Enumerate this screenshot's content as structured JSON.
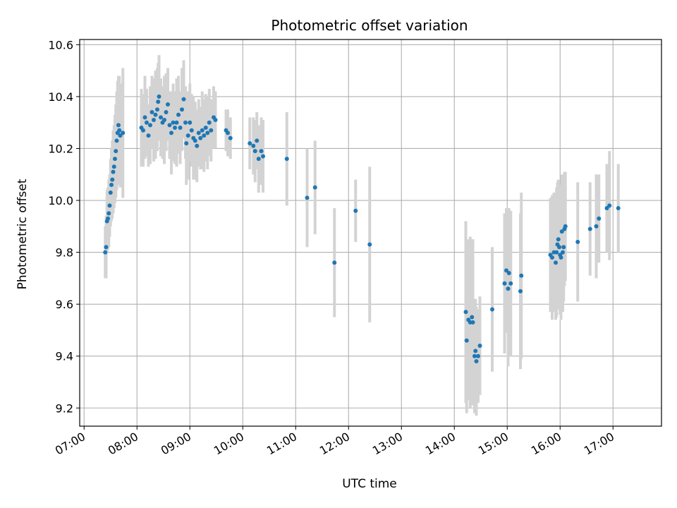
{
  "chart_data": {
    "type": "scatter",
    "title": "Photometric offset variation",
    "xlabel": "UTC time",
    "ylabel": "Photometric offset",
    "x_unit": "hours UTC",
    "xlim": [
      "06:55",
      "17:55"
    ],
    "ylim": [
      9.13,
      10.62
    ],
    "x_ticks": [
      "07:00",
      "08:00",
      "09:00",
      "10:00",
      "11:00",
      "12:00",
      "13:00",
      "14:00",
      "15:00",
      "16:00",
      "17:00"
    ],
    "y_ticks": [
      "9.2",
      "9.4",
      "9.6",
      "9.8",
      "10.0",
      "10.2",
      "10.4",
      "10.6"
    ],
    "grid": true,
    "colors": {
      "points": "#1f77b4",
      "errorbars": "#d3d3d3",
      "grid": "#b0b0b0"
    },
    "series": [
      {
        "points": [
          {
            "t": "07:24",
            "y": 9.8,
            "e": 0.1
          },
          {
            "t": "07:25",
            "y": 9.82,
            "e": 0.12
          },
          {
            "t": "07:26",
            "y": 9.92,
            "e": 0.12
          },
          {
            "t": "07:27",
            "y": 9.93,
            "e": 0.12
          },
          {
            "t": "07:28",
            "y": 9.95,
            "e": 0.13
          },
          {
            "t": "07:29",
            "y": 9.98,
            "e": 0.12
          },
          {
            "t": "07:30",
            "y": 10.03,
            "e": 0.13
          },
          {
            "t": "07:31",
            "y": 10.06,
            "e": 0.14
          },
          {
            "t": "07:32",
            "y": 10.08,
            "e": 0.15
          },
          {
            "t": "07:33",
            "y": 10.11,
            "e": 0.16
          },
          {
            "t": "07:34",
            "y": 10.13,
            "e": 0.16
          },
          {
            "t": "07:35",
            "y": 10.16,
            "e": 0.17
          },
          {
            "t": "07:36",
            "y": 10.19,
            "e": 0.18
          },
          {
            "t": "07:37",
            "y": 10.23,
            "e": 0.19
          },
          {
            "t": "07:38",
            "y": 10.26,
            "e": 0.2
          },
          {
            "t": "07:39",
            "y": 10.29,
            "e": 0.19
          },
          {
            "t": "07:40",
            "y": 10.27,
            "e": 0.21
          },
          {
            "t": "07:41",
            "y": 10.25,
            "e": 0.2
          },
          {
            "t": "07:44",
            "y": 10.26,
            "e": 0.25
          },
          {
            "t": "08:05",
            "y": 10.28,
            "e": 0.15
          },
          {
            "t": "08:07",
            "y": 10.27,
            "e": 0.14
          },
          {
            "t": "08:09",
            "y": 10.32,
            "e": 0.16
          },
          {
            "t": "08:11",
            "y": 10.3,
            "e": 0.13
          },
          {
            "t": "08:13",
            "y": 10.25,
            "e": 0.12
          },
          {
            "t": "08:15",
            "y": 10.29,
            "e": 0.15
          },
          {
            "t": "08:17",
            "y": 10.34,
            "e": 0.14
          },
          {
            "t": "08:19",
            "y": 10.31,
            "e": 0.16
          },
          {
            "t": "08:21",
            "y": 10.33,
            "e": 0.17
          },
          {
            "t": "08:23",
            "y": 10.35,
            "e": 0.16
          },
          {
            "t": "08:24",
            "y": 10.38,
            "e": 0.15
          },
          {
            "t": "08:25",
            "y": 10.4,
            "e": 0.16
          },
          {
            "t": "08:27",
            "y": 10.32,
            "e": 0.15
          },
          {
            "t": "08:29",
            "y": 10.3,
            "e": 0.14
          },
          {
            "t": "08:31",
            "y": 10.31,
            "e": 0.17
          },
          {
            "t": "08:33",
            "y": 10.34,
            "e": 0.15
          },
          {
            "t": "08:35",
            "y": 10.37,
            "e": 0.14
          },
          {
            "t": "08:37",
            "y": 10.29,
            "e": 0.13
          },
          {
            "t": "08:39",
            "y": 10.26,
            "e": 0.16
          },
          {
            "t": "08:41",
            "y": 10.3,
            "e": 0.15
          },
          {
            "t": "08:43",
            "y": 10.28,
            "e": 0.14
          },
          {
            "t": "08:45",
            "y": 10.3,
            "e": 0.17
          },
          {
            "t": "08:47",
            "y": 10.33,
            "e": 0.15
          },
          {
            "t": "08:49",
            "y": 10.28,
            "e": 0.14
          },
          {
            "t": "08:51",
            "y": 10.35,
            "e": 0.16
          },
          {
            "t": "08:53",
            "y": 10.39,
            "e": 0.15
          },
          {
            "t": "08:55",
            "y": 10.3,
            "e": 0.14
          },
          {
            "t": "08:56",
            "y": 10.22,
            "e": 0.16
          },
          {
            "t": "08:58",
            "y": 10.25,
            "e": 0.17
          },
          {
            "t": "09:00",
            "y": 10.3,
            "e": 0.15
          },
          {
            "t": "09:02",
            "y": 10.27,
            "e": 0.14
          },
          {
            "t": "09:04",
            "y": 10.24,
            "e": 0.16
          },
          {
            "t": "09:06",
            "y": 10.23,
            "e": 0.15
          },
          {
            "t": "09:08",
            "y": 10.21,
            "e": 0.14
          },
          {
            "t": "09:10",
            "y": 10.26,
            "e": 0.13
          },
          {
            "t": "09:12",
            "y": 10.24,
            "e": 0.12
          },
          {
            "t": "09:14",
            "y": 10.27,
            "e": 0.15
          },
          {
            "t": "09:16",
            "y": 10.25,
            "e": 0.14
          },
          {
            "t": "09:18",
            "y": 10.28,
            "e": 0.13
          },
          {
            "t": "09:20",
            "y": 10.26,
            "e": 0.14
          },
          {
            "t": "09:22",
            "y": 10.3,
            "e": 0.13
          },
          {
            "t": "09:24",
            "y": 10.27,
            "e": 0.12
          },
          {
            "t": "09:27",
            "y": 10.32,
            "e": 0.12
          },
          {
            "t": "09:29",
            "y": 10.31,
            "e": 0.11
          },
          {
            "t": "09:41",
            "y": 10.27,
            "e": 0.08
          },
          {
            "t": "09:43",
            "y": 10.26,
            "e": 0.09
          },
          {
            "t": "09:46",
            "y": 10.24,
            "e": 0.08
          },
          {
            "t": "10:08",
            "y": 10.22,
            "e": 0.1
          },
          {
            "t": "10:12",
            "y": 10.21,
            "e": 0.11
          },
          {
            "t": "10:14",
            "y": 10.19,
            "e": 0.12
          },
          {
            "t": "10:16",
            "y": 10.23,
            "e": 0.11
          },
          {
            "t": "10:18",
            "y": 10.16,
            "e": 0.13
          },
          {
            "t": "10:21",
            "y": 10.19,
            "e": 0.13
          },
          {
            "t": "10:23",
            "y": 10.17,
            "e": 0.14
          },
          {
            "t": "10:50",
            "y": 10.16,
            "e": 0.18
          },
          {
            "t": "11:13",
            "y": 10.01,
            "e": 0.19
          },
          {
            "t": "11:22",
            "y": 10.05,
            "e": 0.18
          },
          {
            "t": "11:44",
            "y": 9.76,
            "e": 0.21
          },
          {
            "t": "12:08",
            "y": 9.96,
            "e": 0.12
          },
          {
            "t": "12:24",
            "y": 9.83,
            "e": 0.3
          },
          {
            "t": "14:13",
            "y": 9.57,
            "e": 0.35
          },
          {
            "t": "14:14",
            "y": 9.46,
            "e": 0.28
          },
          {
            "t": "14:16",
            "y": 9.54,
            "e": 0.31
          },
          {
            "t": "14:18",
            "y": 9.53,
            "e": 0.33
          },
          {
            "t": "14:20",
            "y": 9.55,
            "e": 0.3
          },
          {
            "t": "14:21",
            "y": 9.53,
            "e": 0.32
          },
          {
            "t": "14:23",
            "y": 9.4,
            "e": 0.22
          },
          {
            "t": "14:24",
            "y": 9.42,
            "e": 0.2
          },
          {
            "t": "14:25",
            "y": 9.38,
            "e": 0.21
          },
          {
            "t": "14:27",
            "y": 9.4,
            "e": 0.18
          },
          {
            "t": "14:29",
            "y": 9.44,
            "e": 0.19
          },
          {
            "t": "14:43",
            "y": 9.58,
            "e": 0.24
          },
          {
            "t": "14:57",
            "y": 9.68,
            "e": 0.27
          },
          {
            "t": "14:59",
            "y": 9.73,
            "e": 0.24
          },
          {
            "t": "15:01",
            "y": 9.66,
            "e": 0.3
          },
          {
            "t": "15:02",
            "y": 9.72,
            "e": 0.25
          },
          {
            "t": "15:04",
            "y": 9.68,
            "e": 0.28
          },
          {
            "t": "15:15",
            "y": 9.65,
            "e": 0.3
          },
          {
            "t": "15:16",
            "y": 9.71,
            "e": 0.32
          },
          {
            "t": "15:49",
            "y": 9.79,
            "e": 0.22
          },
          {
            "t": "15:51",
            "y": 9.78,
            "e": 0.24
          },
          {
            "t": "15:53",
            "y": 9.8,
            "e": 0.23
          },
          {
            "t": "15:55",
            "y": 9.76,
            "e": 0.22
          },
          {
            "t": "15:56",
            "y": 9.8,
            "e": 0.25
          },
          {
            "t": "15:57",
            "y": 9.83,
            "e": 0.24
          },
          {
            "t": "15:58",
            "y": 9.85,
            "e": 0.23
          },
          {
            "t": "15:59",
            "y": 9.82,
            "e": 0.24
          },
          {
            "t": "16:00",
            "y": 9.79,
            "e": 0.23
          },
          {
            "t": "16:01",
            "y": 9.78,
            "e": 0.24
          },
          {
            "t": "16:02",
            "y": 9.88,
            "e": 0.22
          },
          {
            "t": "16:03",
            "y": 9.8,
            "e": 0.23
          },
          {
            "t": "16:04",
            "y": 9.82,
            "e": 0.21
          },
          {
            "t": "16:05",
            "y": 9.89,
            "e": 0.22
          },
          {
            "t": "16:06",
            "y": 9.9,
            "e": 0.21
          },
          {
            "t": "16:20",
            "y": 9.84,
            "e": 0.23
          },
          {
            "t": "16:34",
            "y": 9.89,
            "e": 0.18
          },
          {
            "t": "16:41",
            "y": 9.9,
            "e": 0.2
          },
          {
            "t": "16:44",
            "y": 9.93,
            "e": 0.17
          },
          {
            "t": "16:53",
            "y": 9.97,
            "e": 0.17
          },
          {
            "t": "16:56",
            "y": 9.98,
            "e": 0.21
          },
          {
            "t": "17:06",
            "y": 9.97,
            "e": 0.17
          }
        ]
      }
    ]
  }
}
